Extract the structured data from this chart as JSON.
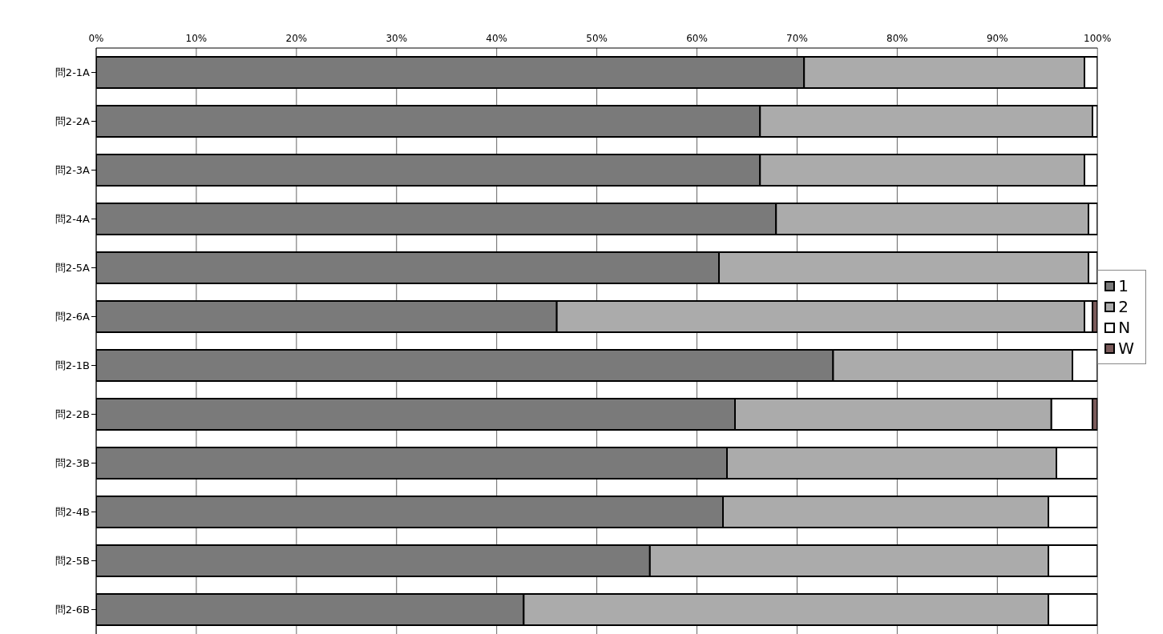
{
  "chart_data": {
    "type": "bar",
    "orientation": "horizontal",
    "stacked": true,
    "categories": [
      "問2-1A",
      "問2-2A",
      "問2-3A",
      "問2-4A",
      "問2-5A",
      "問2-6A",
      "問2-1B",
      "問2-2B",
      "問2-3B",
      "問2-4B",
      "問2-5B",
      "問2-6B"
    ],
    "series": [
      {
        "name": "1",
        "color": "#7a7a7a",
        "values": [
          70.7,
          66.3,
          66.3,
          67.9,
          62.2,
          46.0,
          73.6,
          63.8,
          63.0,
          62.6,
          55.3,
          42.7
        ]
      },
      {
        "name": "2",
        "color": "#ababab",
        "values": [
          28.0,
          33.2,
          32.4,
          31.2,
          36.9,
          52.7,
          23.9,
          31.6,
          32.9,
          32.5,
          39.8,
          52.4
        ]
      },
      {
        "name": "N",
        "color": "#ffffff",
        "values": [
          1.3,
          0.5,
          1.3,
          0.9,
          0.9,
          0.8,
          2.5,
          4.1,
          4.1,
          4.9,
          4.9,
          4.9
        ]
      },
      {
        "name": "W",
        "color": "#7a5a5a",
        "values": [
          0,
          0,
          0,
          0,
          0,
          0.5,
          0,
          0.5,
          0,
          0,
          0,
          0
        ]
      }
    ],
    "xlim": [
      0,
      100
    ],
    "xticks": [
      {
        "value": 0,
        "label": "0%"
      },
      {
        "value": 10,
        "label": "10%"
      },
      {
        "value": 20,
        "label": "20%"
      },
      {
        "value": 30,
        "label": "30%"
      },
      {
        "value": 40,
        "label": "40%"
      },
      {
        "value": 50,
        "label": "50%"
      },
      {
        "value": 60,
        "label": "60%"
      },
      {
        "value": 70,
        "label": "70%"
      },
      {
        "value": 80,
        "label": "80%"
      },
      {
        "value": 90,
        "label": "90%"
      },
      {
        "value": 100,
        "label": "100%"
      }
    ],
    "grid": "x",
    "legend": "right"
  }
}
